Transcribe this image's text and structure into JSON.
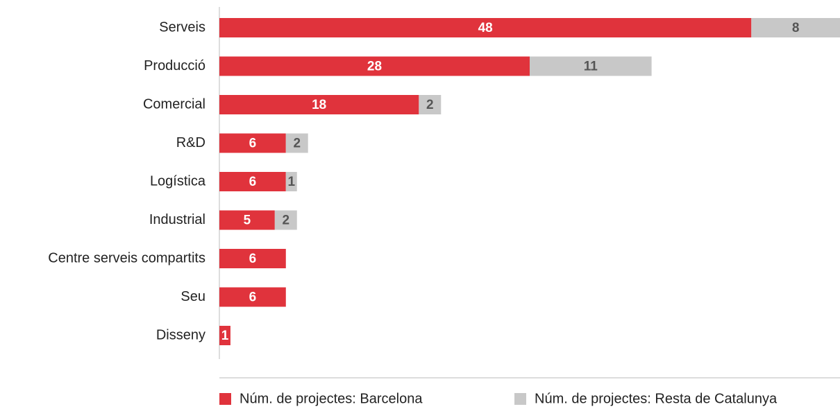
{
  "chart_data": {
    "type": "stacked_bar_horizontal",
    "categories": [
      "Serveis",
      "Producció",
      "Comercial",
      "R&D",
      "Logística",
      "Industrial",
      "Centre serveis compartits",
      "Seu",
      "Disseny"
    ],
    "series": [
      {
        "name": "Núm. de projectes: Barcelona",
        "color": "#e0333c",
        "values": [
          48,
          28,
          18,
          6,
          6,
          5,
          6,
          6,
          1
        ]
      },
      {
        "name": "Núm. de projectes: Resta de Catalunya",
        "color": "#c8c8c8",
        "values": [
          8,
          11,
          2,
          2,
          1,
          2,
          null,
          null,
          null
        ]
      }
    ],
    "legend": "bottom"
  }
}
